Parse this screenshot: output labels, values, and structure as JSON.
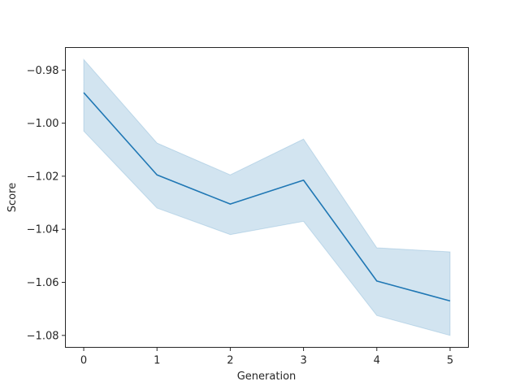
{
  "chart_data": {
    "type": "line",
    "title": "",
    "xlabel": "Generation",
    "ylabel": "Score",
    "x": [
      0,
      1,
      2,
      3,
      4,
      5
    ],
    "xlim": [
      -0.25,
      5.25
    ],
    "ylim": [
      -1.0845,
      -0.9715
    ],
    "xticks": [
      0,
      1,
      2,
      3,
      4,
      5
    ],
    "yticks": [
      -0.98,
      -1.0,
      -1.02,
      -1.04,
      -1.06,
      -1.08
    ],
    "ytick_labels": [
      "−0.98",
      "−1.00",
      "−1.02",
      "−1.04",
      "−1.06",
      "−1.08"
    ],
    "grid": false,
    "series": [
      {
        "values": [
          -0.9885,
          -1.0195,
          -1.0305,
          -1.0215,
          -1.0595,
          -1.067
        ],
        "ci_lower": [
          -1.003,
          -1.032,
          -1.042,
          -1.037,
          -1.0725,
          -1.08
        ],
        "ci_upper": [
          -0.976,
          -1.0075,
          -1.0195,
          -1.006,
          -1.047,
          -1.0485
        ],
        "color": "#1f77b4"
      }
    ]
  }
}
